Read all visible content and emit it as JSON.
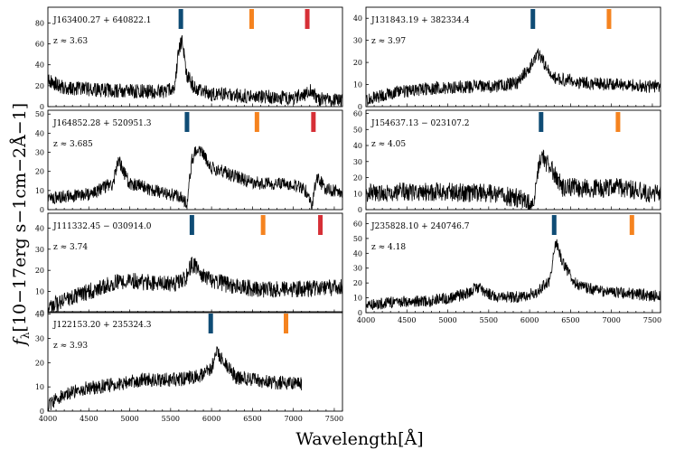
{
  "figure": {
    "xlabel": "Wavelength[Å]",
    "ylabel_main": "f",
    "ylabel_sub": "λ",
    "ylabel_units": "[10−17erg s−1cm−2Å−1]",
    "marker_colors": [
      "#0f4c75",
      "#f5831f",
      "#d62f36"
    ]
  },
  "chart_data": [
    {
      "type": "line",
      "name": "J163400.27 + 640822.1",
      "redshift_label": "z ≈ 3.63",
      "z": 3.63,
      "xlim": [
        4000,
        7600
      ],
      "ylim": [
        0,
        95
      ],
      "yticks": [
        0,
        20,
        40,
        60,
        80
      ],
      "xticks": [
        4000,
        4500,
        5000,
        5500,
        6000,
        6500,
        7000,
        7500
      ],
      "show_xticklabels": false,
      "markers": [
        5625,
        6490,
        7170
      ],
      "features": [
        {
          "x": [
            4000,
            4200,
            4600,
            5000,
            5400,
            5550,
            5600,
            5640,
            5700,
            5800,
            6000,
            6500,
            7000,
            7150,
            7200,
            7300,
            7600
          ],
          "y": [
            25,
            18,
            16,
            15,
            14,
            18,
            55,
            62,
            30,
            17,
            12,
            10,
            8,
            12,
            16,
            7,
            6
          ]
        }
      ],
      "noise": 7
    },
    {
      "type": "line",
      "name": "J131843.19 + 382334.4",
      "redshift_label": "z ≈ 3.97",
      "z": 3.97,
      "xlim": [
        4000,
        7600
      ],
      "ylim": [
        0,
        45
      ],
      "yticks": [
        0,
        10,
        20,
        30,
        40
      ],
      "xticks": [
        4000,
        4500,
        5000,
        5500,
        6000,
        6500,
        7000,
        7500
      ],
      "show_xticklabels": false,
      "markers": [
        6040,
        6970
      ],
      "features": [
        {
          "x": [
            4000,
            4300,
            4700,
            5200,
            5600,
            5850,
            6000,
            6100,
            6200,
            6300,
            6600,
            7000,
            7600
          ],
          "y": [
            3,
            6,
            8,
            9,
            9,
            11,
            18,
            24,
            18,
            13,
            11,
            10,
            9
          ]
        }
      ],
      "noise": 3
    },
    {
      "type": "line",
      "name": "J164852.28 + 520951.3",
      "redshift_label": "z ≈ 3.685",
      "z": 3.685,
      "xlim": [
        4000,
        7600
      ],
      "ylim": [
        0,
        52
      ],
      "yticks": [
        0,
        10,
        20,
        30,
        40,
        50
      ],
      "xticks": [
        4000,
        4500,
        5000,
        5500,
        6000,
        6500,
        7000,
        7500
      ],
      "show_xticklabels": false,
      "markers": [
        5700,
        6555,
        7245
      ],
      "features": [
        {
          "x": [
            4000,
            4500,
            4800,
            4860,
            4920,
            5000,
            5300,
            5600,
            5700,
            5760,
            5800,
            5850,
            6000,
            6500,
            7000,
            7150,
            7230,
            7280,
            7400,
            7600
          ],
          "y": [
            6,
            8,
            14,
            27,
            20,
            14,
            10,
            7,
            3,
            26,
            30,
            32,
            22,
            14,
            13,
            10,
            2,
            17,
            11,
            9
          ]
        }
      ],
      "noise": 3.5
    },
    {
      "type": "line",
      "name": "J154637.13 − 023107.2",
      "redshift_label": "z ≈ 4.05",
      "z": 4.05,
      "xlim": [
        4000,
        7600
      ],
      "ylim": [
        0,
        62
      ],
      "yticks": [
        0,
        10,
        20,
        30,
        40,
        50,
        60
      ],
      "xticks": [
        4000,
        4500,
        5000,
        5500,
        6000,
        6500,
        7000,
        7500
      ],
      "show_xticklabels": false,
      "markers": [
        6140,
        7080
      ],
      "features": [
        {
          "x": [
            4000,
            4500,
            5000,
            5500,
            5900,
            6050,
            6100,
            6150,
            6250,
            6400,
            6800,
            7100,
            7600
          ],
          "y": [
            10,
            11,
            11,
            10,
            7,
            3,
            25,
            32,
            27,
            14,
            13,
            14,
            9
          ]
        }
      ],
      "noise": 6
    },
    {
      "type": "line",
      "name": "J111332.45 − 030914.0",
      "redshift_label": "z ≈ 3.74",
      "z": 3.74,
      "xlim": [
        4000,
        7600
      ],
      "ylim": [
        0,
        47
      ],
      "yticks": [
        0,
        10,
        20,
        30,
        40
      ],
      "xticks": [
        4000,
        4500,
        5000,
        5500,
        6000,
        6500,
        7000,
        7500
      ],
      "show_xticklabels": false,
      "markers": [
        5760,
        6630,
        7330
      ],
      "features": [
        {
          "x": [
            4000,
            4200,
            4500,
            4800,
            5000,
            5300,
            5600,
            5700,
            5760,
            5800,
            5900,
            6200,
            6600,
            7000,
            7600
          ],
          "y": [
            2,
            6,
            10,
            14,
            15,
            14,
            14,
            17,
            23,
            22,
            17,
            13,
            11,
            11,
            12
          ]
        }
      ],
      "noise": 4
    },
    {
      "type": "line",
      "name": "J235828.10 + 240746.7",
      "redshift_label": "z ≈ 4.18",
      "z": 4.18,
      "xlim": [
        4000,
        7600
      ],
      "ylim": [
        0,
        67
      ],
      "yticks": [
        0,
        10,
        20,
        30,
        40,
        50,
        60
      ],
      "xticks": [
        4000,
        4500,
        5000,
        5500,
        6000,
        6500,
        7000,
        7500
      ],
      "xticklabels": [
        "4000",
        "4500",
        "5000",
        "5500",
        "6000",
        "6500",
        "7000",
        "7500"
      ],
      "show_xticklabels": true,
      "markers": [
        6300,
        7250
      ],
      "features": [
        {
          "x": [
            4000,
            4300,
            4800,
            5200,
            5350,
            5600,
            5900,
            6100,
            6250,
            6320,
            6400,
            6550,
            6800,
            7200,
            7600
          ],
          "y": [
            5,
            7,
            8,
            12,
            17,
            10,
            11,
            14,
            22,
            48,
            34,
            20,
            15,
            13,
            11
          ]
        }
      ],
      "noise": 4
    },
    {
      "type": "line",
      "name": "J122153.20 + 235324.3",
      "redshift_label": "z ≈ 3.93",
      "z": 3.93,
      "xlim": [
        4000,
        7600
      ],
      "ylim": [
        0,
        41
      ],
      "yticks": [
        0,
        10,
        20,
        30,
        40
      ],
      "xticks": [
        4000,
        4500,
        5000,
        5500,
        6000,
        6500,
        7000,
        7500
      ],
      "xticklabels": [
        "4000",
        "4500",
        "5000",
        "5500",
        "6000",
        "6500",
        "7000",
        "7500"
      ],
      "show_xticklabels": true,
      "markers": [
        5990,
        6910
      ],
      "features": [
        {
          "x": [
            4000,
            4100,
            4400,
            4800,
            5200,
            5600,
            5900,
            6000,
            6060,
            6150,
            6300,
            6700,
            7100
          ],
          "y": [
            2,
            5,
            9,
            11,
            13,
            13,
            15,
            18,
            24,
            20,
            14,
            12,
            11
          ]
        }
      ],
      "noise": 3
    }
  ]
}
